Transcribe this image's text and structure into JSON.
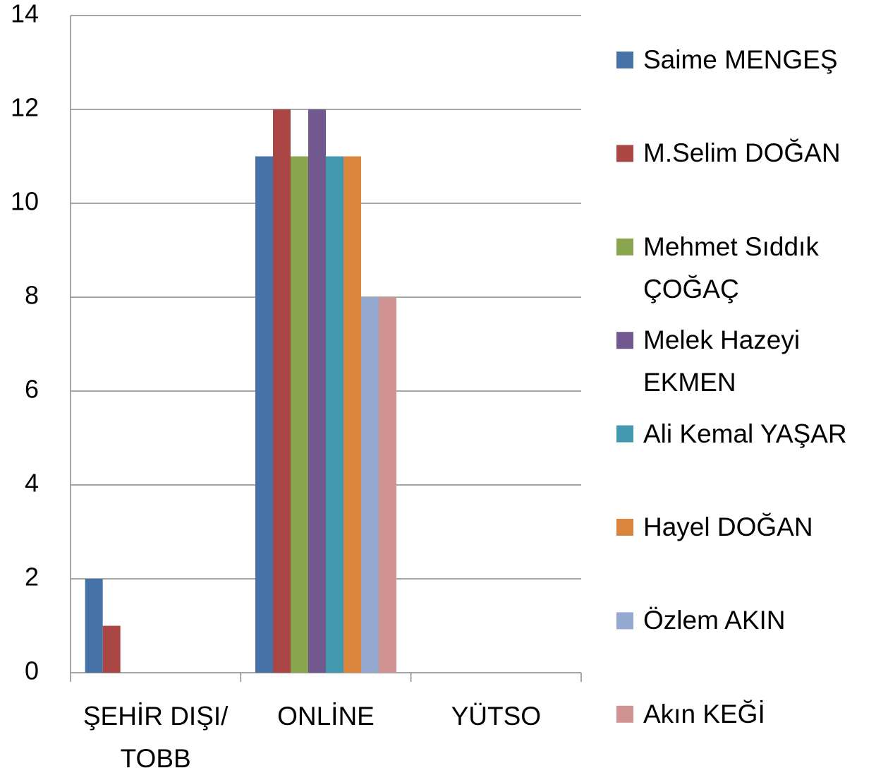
{
  "chart_data": {
    "type": "bar",
    "categories": [
      "ŞEHİR DIŞI/ TOBB",
      "ONLİNE",
      "YÜTSO"
    ],
    "series": [
      {
        "name": "Saime MENGEŞ",
        "color": "#4572a7",
        "values": [
          2,
          11,
          0
        ]
      },
      {
        "name": "M.Selim DOĞAN",
        "color": "#aa4643",
        "values": [
          1,
          12,
          0
        ]
      },
      {
        "name": "Mehmet Sıddık ÇOĞAÇ",
        "color": "#89a54e",
        "values": [
          0,
          11,
          0
        ]
      },
      {
        "name": "Melek Hazeyi EKMEN",
        "color": "#71588f",
        "values": [
          0,
          12,
          0
        ]
      },
      {
        "name": "Ali Kemal YAŞAR",
        "color": "#4198af",
        "values": [
          0,
          11,
          0
        ]
      },
      {
        "name": "Hayel DOĞAN",
        "color": "#db843d",
        "values": [
          0,
          11,
          0
        ]
      },
      {
        "name": "Özlem AKIN",
        "color": "#93a9cf",
        "values": [
          0,
          8,
          0
        ]
      },
      {
        "name": "Akın KEĞİ",
        "color": "#d19392",
        "values": [
          0,
          8,
          0
        ]
      }
    ],
    "ylim": [
      0,
      14
    ],
    "yticks": [
      0,
      2,
      4,
      6,
      8,
      10,
      12,
      14
    ],
    "grid": true,
    "legend": "right"
  }
}
